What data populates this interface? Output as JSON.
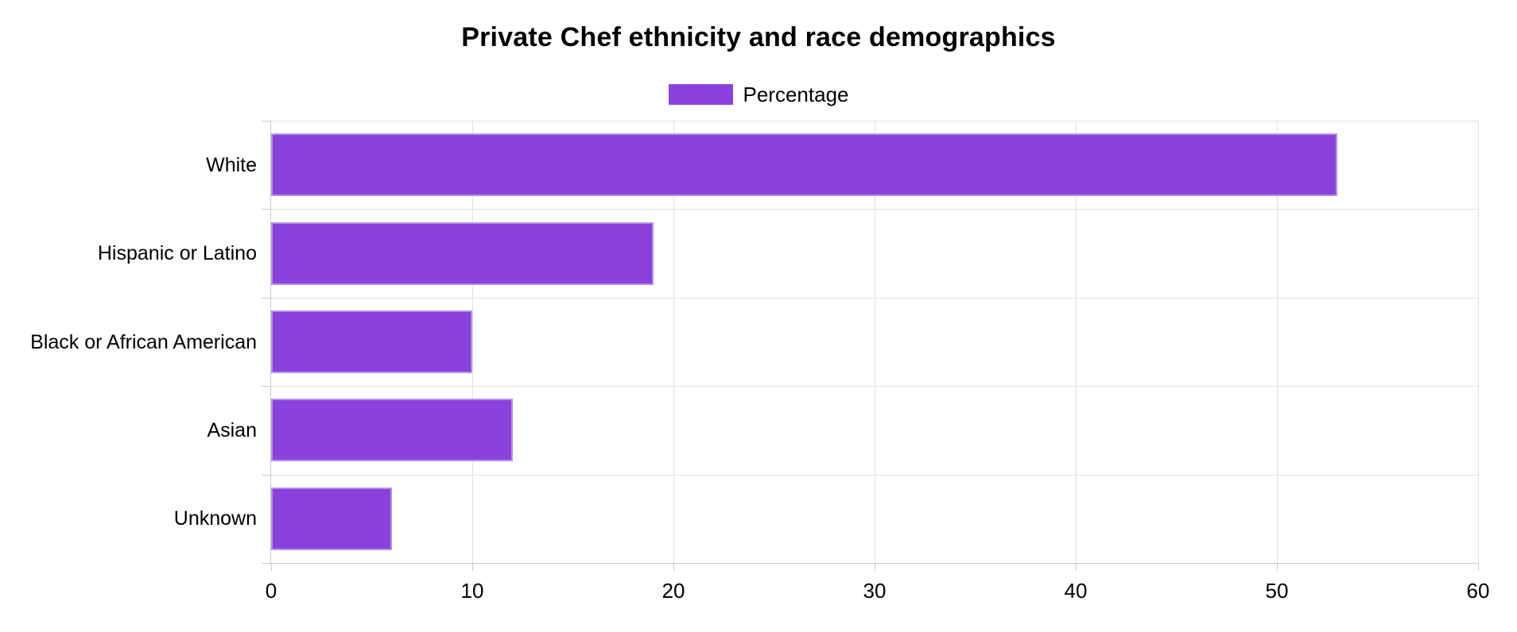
{
  "title": "Private Chef ethnicity and race demographics",
  "legend": {
    "label": "Percentage"
  },
  "colors": {
    "bar_fill": "#8b41dd",
    "bar_border": "#b292e8",
    "grid": "#e2e2e2",
    "axis": "#c9c9c9",
    "text": "#000000",
    "background": "#ffffff"
  },
  "chart_data": {
    "type": "bar",
    "orientation": "horizontal",
    "title": "Private Chef ethnicity and race demographics",
    "categories": [
      "White",
      "Hispanic or Latino",
      "Black or African American",
      "Asian",
      "Unknown"
    ],
    "series": [
      {
        "name": "Percentage",
        "values": [
          53,
          19,
          10,
          12,
          6
        ]
      }
    ],
    "xlabel": "",
    "ylabel": "",
    "xlim": [
      0,
      60
    ],
    "xticks": [
      0,
      10,
      20,
      30,
      40,
      50,
      60
    ],
    "grid": true,
    "legend_position": "top"
  }
}
